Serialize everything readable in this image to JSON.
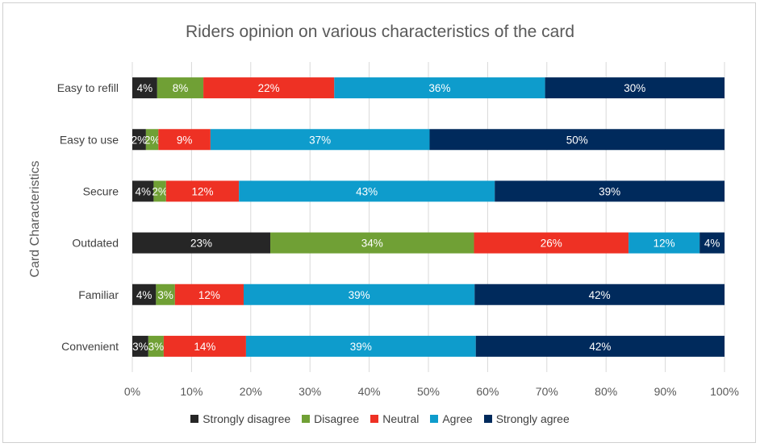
{
  "chart_data": {
    "type": "bar",
    "orientation": "horizontal",
    "stacked": true,
    "title": "Riders opinion on various characteristics of the card",
    "ylabel": "Card Characteristics",
    "xlabel": "",
    "xlim": [
      0,
      100
    ],
    "x_ticks": [
      "0%",
      "10%",
      "20%",
      "30%",
      "40%",
      "50%",
      "60%",
      "70%",
      "80%",
      "90%",
      "100%"
    ],
    "grid": true,
    "legend_position": "bottom",
    "categories": [
      "Easy to refill",
      "Easy to use",
      "Secure",
      "Outdated",
      "Familiar",
      "Convenient"
    ],
    "series": [
      {
        "name": "Strongly disagree",
        "color": "#262626",
        "values": [
          4.2,
          2.3,
          3.6,
          23.3,
          4.0,
          2.7
        ],
        "labels": [
          "4%",
          "2%",
          "4%",
          "23%",
          "4%",
          "3%"
        ]
      },
      {
        "name": "Disagree",
        "color": "#70a035",
        "values": [
          7.8,
          2.1,
          2.1,
          34.4,
          3.2,
          2.6
        ],
        "labels": [
          "8%",
          "2%",
          "2%",
          "34%",
          "3%",
          "3%"
        ]
      },
      {
        "name": "Neutral",
        "color": "#ee3124",
        "values": [
          22.1,
          8.8,
          12.3,
          26.1,
          11.6,
          13.9
        ],
        "labels": [
          "22%",
          "9%",
          "12%",
          "26%",
          "12%",
          "14%"
        ]
      },
      {
        "name": "Agree",
        "color": "#0e9ccc",
        "values": [
          35.6,
          37.0,
          43.2,
          12.0,
          39.0,
          38.8
        ],
        "labels": [
          "36%",
          "37%",
          "43%",
          "12%",
          "39%",
          "39%"
        ]
      },
      {
        "name": "Strongly agree",
        "color": "#002a5c",
        "values": [
          30.3,
          49.8,
          38.8,
          4.2,
          42.2,
          42.0
        ],
        "labels": [
          "30%",
          "50%",
          "39%",
          "4%",
          "42%",
          "42%"
        ]
      }
    ]
  }
}
